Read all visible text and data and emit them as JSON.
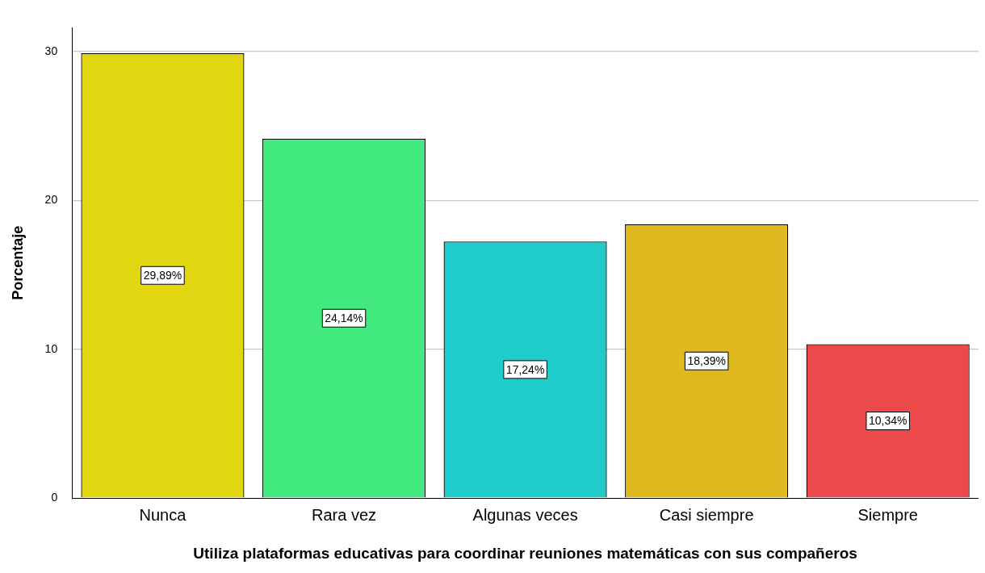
{
  "chart_data": {
    "type": "bar",
    "xlabel": "Utiliza plataformas educativas para coordinar reuniones matemáticas con sus compañeros",
    "ylabel": "Porcentaje",
    "categories": [
      "Nunca",
      "Rara vez",
      "Algunas veces",
      "Casi siempre",
      "Siempre"
    ],
    "values": [
      29.89,
      24.14,
      17.24,
      18.39,
      10.34
    ],
    "colors": [
      "#e1d60f",
      "#42e97f",
      "#1fcccc",
      "#dfb91f",
      "#ec4a4a"
    ],
    "value_labels": [
      "29,89%",
      "24,14%",
      "17,24%",
      "18,39%",
      "10,34%"
    ],
    "ylim": [
      0,
      31.6
    ],
    "yticks": [
      0,
      10,
      20,
      30
    ],
    "grid": "y",
    "legend": false
  }
}
